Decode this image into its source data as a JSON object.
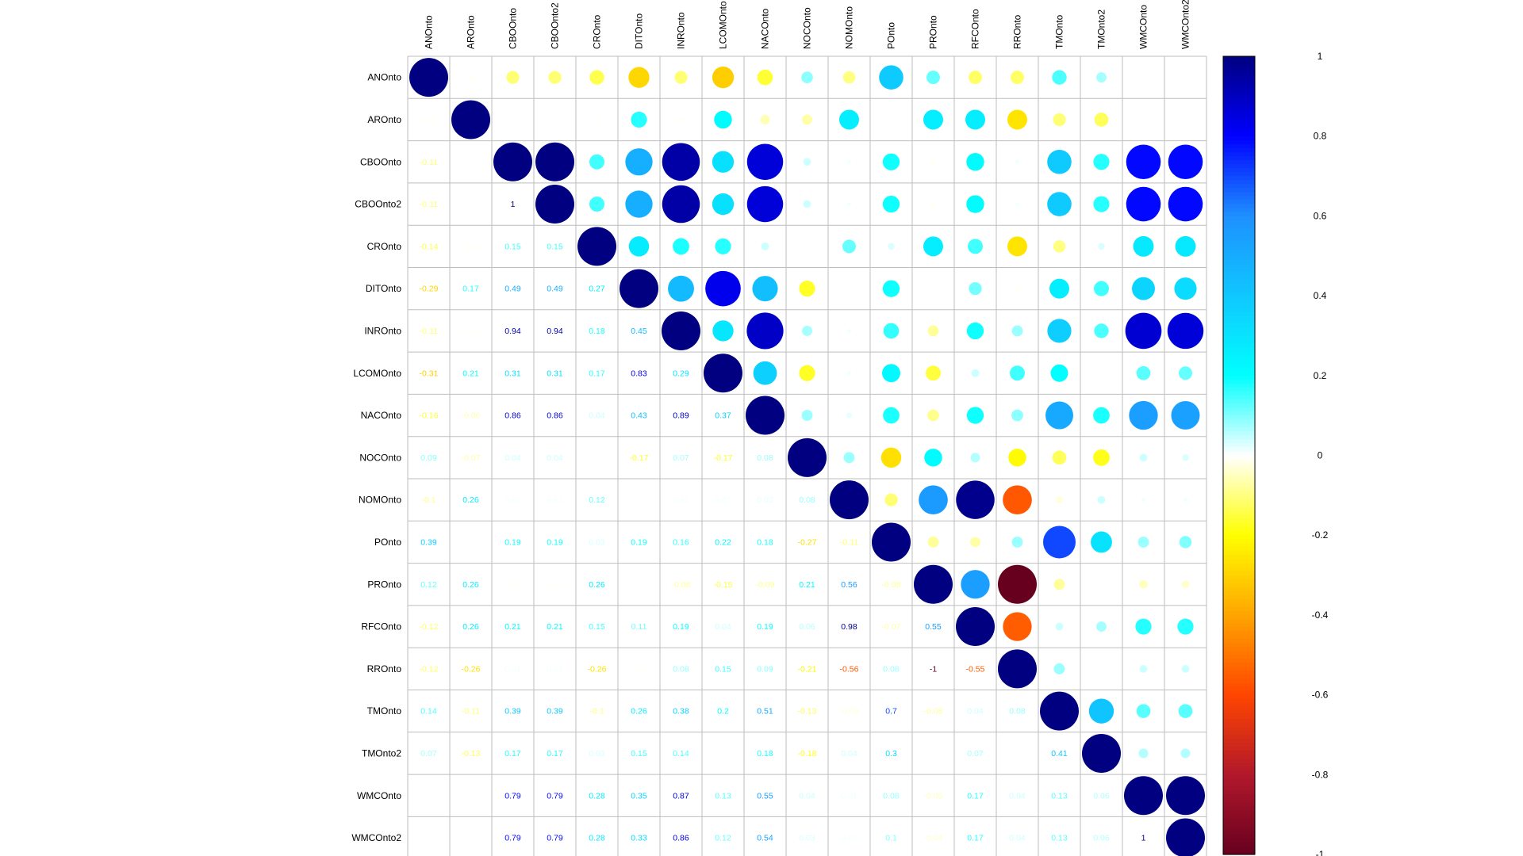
{
  "chart_data": {
    "type": "heatmap",
    "title": "",
    "variables": [
      "ANOnto",
      "AROnto",
      "CBOOnto",
      "CBOOnto2",
      "CROnto",
      "DITOnto",
      "INROnto",
      "LCOMOnto",
      "NACOnto",
      "NOCOnto",
      "NOMOnto",
      "POnto",
      "PROnto",
      "RFCOnto",
      "RROnto",
      "TMOnto",
      "TMOnto2",
      "WMCOnto",
      "WMCOnto2"
    ],
    "correlations": [
      [
        1,
        -0.01,
        -0.11,
        -0.11,
        -0.14,
        -0.29,
        -0.11,
        -0.31,
        -0.16,
        0.09,
        -0.1,
        0.39,
        0.12,
        -0.12,
        -0.12,
        0.14,
        0.07,
        0,
        0
      ],
      [
        -0.01,
        1,
        0,
        0,
        -0.01,
        0.17,
        -0.01,
        0.21,
        -0.06,
        -0.07,
        0.26,
        0,
        0.26,
        0.26,
        -0.26,
        -0.11,
        -0.13,
        0,
        0
      ],
      [
        -0.11,
        0,
        1,
        1,
        0.15,
        0.49,
        0.94,
        0.31,
        0.86,
        0.04,
        0.01,
        0.19,
        -0.01,
        0.21,
        0.01,
        0.39,
        0.17,
        0.79,
        0.79
      ],
      [
        -0.11,
        0,
        1,
        1,
        0.15,
        0.49,
        0.94,
        0.31,
        0.86,
        0.04,
        0.01,
        0.19,
        -0.01,
        0.21,
        0.01,
        0.39,
        0.17,
        0.79,
        0.79
      ],
      [
        -0.14,
        -0.01,
        0.15,
        0.15,
        1,
        0.27,
        0.18,
        0.17,
        0.04,
        0,
        0.12,
        0.03,
        0.26,
        0.15,
        -0.26,
        -0.1,
        0.03,
        0.28,
        0.28
      ],
      [
        -0.29,
        0.17,
        0.49,
        0.49,
        0.27,
        1,
        0.45,
        0.83,
        0.43,
        -0.17,
        0,
        0.19,
        0,
        0.11,
        -0.01,
        0.26,
        0.15,
        0.35,
        0.33
      ],
      [
        -0.11,
        -0.01,
        0.94,
        0.94,
        0.18,
        0.45,
        1,
        0.29,
        0.89,
        0.07,
        0.01,
        0.16,
        -0.08,
        0.19,
        0.08,
        0.38,
        0.14,
        0.87,
        0.86
      ],
      [
        -0.31,
        0.21,
        0.31,
        0.31,
        0.17,
        0.83,
        0.29,
        1,
        0.37,
        -0.17,
        0.01,
        0.22,
        -0.15,
        0.04,
        0.15,
        0.2,
        0,
        0.13,
        0.12
      ],
      [
        -0.16,
        -0.06,
        0.86,
        0.86,
        0.04,
        0.43,
        0.89,
        0.37,
        1,
        0.08,
        0.02,
        0.18,
        -0.09,
        0.19,
        0.09,
        0.51,
        0.18,
        0.55,
        0.54
      ],
      [
        0.09,
        -0.07,
        0.04,
        0.04,
        0,
        -0.17,
        0.07,
        -0.17,
        0.08,
        1,
        0.08,
        -0.27,
        0.21,
        0.06,
        -0.21,
        -0.13,
        -0.18,
        0.04,
        0.03
      ],
      [
        -0.1,
        0.26,
        0.01,
        0.01,
        0.12,
        0,
        0.01,
        0.01,
        0.02,
        0.08,
        1,
        -0.11,
        0.56,
        0.98,
        -0.56,
        -0.03,
        0.04,
        0.01,
        0.01
      ],
      [
        0.39,
        0,
        0.19,
        0.19,
        0.03,
        0.19,
        0.16,
        0.22,
        0.18,
        -0.27,
        -0.11,
        1,
        -0.08,
        -0.07,
        0.08,
        0.7,
        0.3,
        0.08,
        0.1
      ],
      [
        0.12,
        0.26,
        -0.01,
        -0.01,
        0.26,
        0,
        -0.08,
        -0.15,
        -0.09,
        0.21,
        0.56,
        -0.08,
        1,
        0.55,
        -1,
        -0.08,
        0,
        -0.05,
        -0.04
      ],
      [
        -0.12,
        0.26,
        0.21,
        0.21,
        0.15,
        0.11,
        0.19,
        0.04,
        0.19,
        0.06,
        0.98,
        -0.07,
        0.55,
        1,
        -0.55,
        0.04,
        0.07,
        0.17,
        0.17
      ],
      [
        -0.12,
        -0.26,
        0.01,
        0.01,
        -0.26,
        -0.01,
        0.08,
        0.15,
        0.09,
        -0.21,
        -0.56,
        0.08,
        -1,
        -0.55,
        1,
        0.08,
        0,
        0.04,
        0.04
      ],
      [
        0.14,
        -0.11,
        0.39,
        0.39,
        -0.1,
        0.26,
        0.38,
        0.2,
        0.51,
        -0.13,
        -0.03,
        0.7,
        -0.08,
        0.04,
        0.08,
        1,
        0.41,
        0.13,
        0.13
      ],
      [
        0.07,
        -0.13,
        0.17,
        0.17,
        0.03,
        0.15,
        0.14,
        0,
        0.18,
        -0.18,
        0.04,
        0.3,
        0,
        0.07,
        0,
        0.41,
        1,
        0.06,
        0.06
      ],
      [
        0,
        0,
        0.79,
        0.79,
        0.28,
        0.35,
        0.87,
        0.13,
        0.55,
        0.04,
        0.01,
        0.08,
        -0.05,
        0.17,
        0.04,
        0.13,
        0.06,
        1,
        1
      ],
      [
        0,
        0,
        0.79,
        0.79,
        0.28,
        0.33,
        0.86,
        0.12,
        0.54,
        0.03,
        0.01,
        0.1,
        -0.04,
        0.17,
        0.04,
        0.13,
        0.06,
        1,
        1
      ]
    ],
    "upper_triangle": "circle",
    "lower_triangle": "number",
    "colorbar": {
      "range": [
        -1,
        1
      ],
      "ticks": [
        1,
        0.8,
        0.6,
        0.4,
        0.2,
        0,
        -0.2,
        -0.4,
        -0.6,
        -0.8,
        -1
      ],
      "tick_labels": [
        "1",
        "0.8",
        "0.6",
        "0.4",
        "0.2",
        "0",
        "-0.2",
        "-0.4",
        "-0.6",
        "-0.8",
        "-1"
      ],
      "colors": [
        "#67001F",
        "#B2182B",
        "#FF4500",
        "#FFA500",
        "#FFFF00",
        "#FFFFFF",
        "#00FFFF",
        "#1E90FF",
        "#0000FF",
        "#000080"
      ],
      "color_stops": [
        -1,
        -0.8,
        -0.6,
        -0.4,
        -0.2,
        0,
        0.2,
        0.6,
        0.8,
        1
      ]
    },
    "grid": true,
    "legend": "right"
  }
}
